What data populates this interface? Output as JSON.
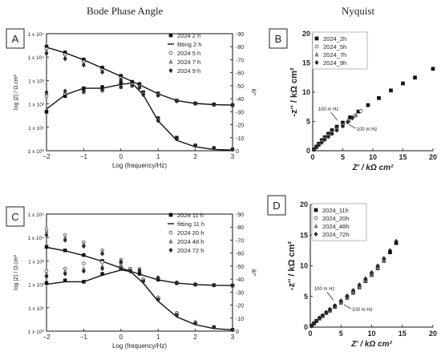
{
  "headings": {
    "left": "Bode Phase Angle",
    "right": "Nyquist"
  },
  "chart_data": [
    {
      "panel": "A",
      "type": "scatter",
      "xlabel": "Log (frequency/Hz)",
      "ylabel": "log |Z| / Ω.cm²",
      "y2label": "θ/°",
      "xlim": [
        -2,
        3
      ],
      "ylim": [
        0,
        5
      ],
      "y2lim": [
        0,
        -90
      ],
      "xticks": [
        "−2",
        "−1",
        "0",
        "1",
        "2",
        "3"
      ],
      "yticks": [
        "1 x 10⁰",
        "1 x 10¹",
        "1 x 10²",
        "1 x 10³",
        "1 x 10⁴",
        "1 x 10⁵"
      ],
      "y2ticks": [
        "0",
        "-10",
        "-20",
        "-30",
        "-40",
        "-50",
        "-60",
        "-70",
        "-80",
        "-90"
      ],
      "legend": [
        "2024 2 h",
        "fitting 2 h",
        "2024 5 h",
        "2024 7 h",
        "2024 9 h"
      ],
      "series": [
        {
          "name": "2024 2 h",
          "marker": "square",
          "axis": "y",
          "x": [
            -2,
            -1.5,
            -1,
            -0.5,
            0,
            0.5,
            1,
            1.5,
            2,
            2.5,
            3
          ],
          "y": [
            4.45,
            4.2,
            3.9,
            3.55,
            3.2,
            2.85,
            2.45,
            2.15,
            2.02,
            1.98,
            1.95
          ]
        },
        {
          "name": "2024 2 h",
          "marker": "square",
          "axis": "y2",
          "x": [
            -2,
            -1.5,
            -1,
            -0.5,
            0,
            0.3,
            0.6,
            1,
            1.5,
            2,
            2.5,
            3
          ],
          "y": [
            -30,
            -42,
            -48,
            -49,
            -52,
            -53,
            -45,
            -25,
            -10,
            -4,
            -2,
            -1
          ]
        },
        {
          "name": "fitting 2 h",
          "marker": "line",
          "axis": "y",
          "x": [
            -2,
            -1.5,
            -1,
            -0.5,
            0,
            0.5,
            1,
            1.5,
            2,
            2.5,
            3
          ],
          "y": [
            4.42,
            4.18,
            3.88,
            3.53,
            3.18,
            2.82,
            2.43,
            2.14,
            2.02,
            1.97,
            1.95
          ]
        },
        {
          "name": "fitting 2 h",
          "marker": "line",
          "axis": "y2",
          "x": [
            -2,
            -1.5,
            -1,
            -0.5,
            0,
            0.3,
            0.6,
            1,
            1.5,
            2,
            2.5,
            3
          ],
          "y": [
            -32,
            -43,
            -48,
            -48,
            -51,
            -52,
            -43,
            -23,
            -8,
            -3,
            -1,
            -0.5
          ]
        },
        {
          "name": "2024 5 h",
          "marker": "circle",
          "axis": "y",
          "x": [
            -2,
            -1.5,
            -1,
            -0.5,
            0,
            0.5,
            1,
            1.5,
            2,
            2.5,
            3
          ],
          "y": [
            4.35,
            4.1,
            3.8,
            3.45,
            3.1,
            2.75,
            2.4,
            2.15,
            2.02,
            1.97,
            1.95
          ]
        },
        {
          "name": "2024 5 h",
          "marker": "circle",
          "axis": "y2",
          "x": [
            -2,
            -1.5,
            -1,
            -0.5,
            0,
            0.3,
            0.6,
            1,
            1.5,
            2,
            2.5,
            3
          ],
          "y": [
            -42,
            -44,
            -45,
            -46,
            -49,
            -51,
            -44,
            -24,
            -9,
            -4,
            -2,
            -1
          ]
        },
        {
          "name": "2024 7 h",
          "marker": "triangle",
          "axis": "y",
          "x": [
            -2,
            -1.5,
            -1,
            -0.5,
            0,
            0.5,
            1,
            1.5,
            2,
            2.5,
            3
          ],
          "y": [
            4.25,
            4.0,
            3.72,
            3.4,
            3.05,
            2.72,
            2.38,
            2.13,
            2.02,
            1.97,
            1.95
          ]
        },
        {
          "name": "2024 7 h",
          "marker": "triangle",
          "axis": "y2",
          "x": [
            -2,
            -1.5,
            -1,
            -0.5,
            0,
            0.3,
            0.6,
            1,
            1.5,
            2,
            2.5,
            3
          ],
          "y": [
            -44,
            -45,
            -45,
            -47,
            -49,
            -50,
            -44,
            -24,
            -9,
            -4,
            -2,
            -1
          ]
        },
        {
          "name": "2024 9 h",
          "marker": "diamond",
          "axis": "y",
          "x": [
            -2,
            -1.5,
            -1,
            -0.5,
            0,
            0.5,
            1,
            1.5,
            2,
            2.5,
            3
          ],
          "y": [
            4.15,
            3.92,
            3.65,
            3.35,
            3.02,
            2.7,
            2.36,
            2.12,
            2.02,
            1.97,
            1.95
          ]
        },
        {
          "name": "2024 9 h",
          "marker": "diamond",
          "axis": "y2",
          "x": [
            -2,
            -1.5,
            -1,
            -0.5,
            0,
            0.3,
            0.6,
            1,
            1.5,
            2,
            2.5,
            3
          ],
          "y": [
            -45,
            -46,
            -46,
            -47,
            -49,
            -50,
            -43,
            -23,
            -9,
            -4,
            -2,
            -1
          ]
        }
      ]
    },
    {
      "panel": "B",
      "type": "scatter",
      "xlabel": "Z' / kΩ cm²",
      "ylabel": "-z'' / kΩ cm²",
      "xlim": [
        0,
        20
      ],
      "ylim": [
        0,
        20
      ],
      "xticks": [
        "0",
        "5",
        "10",
        "15",
        "20"
      ],
      "yticks": [
        "0",
        "5",
        "10",
        "15",
        "20"
      ],
      "legend": [
        "2024_2h",
        "2024_5h",
        "2024_7h",
        "2024_9h"
      ],
      "annotations": [
        "100 m Hz",
        "100 m Hz"
      ],
      "series": [
        {
          "name": "2024_2h",
          "marker": "square",
          "x": [
            0.2,
            0.6,
            1.0,
            1.5,
            2.0,
            2.6,
            3.2,
            4.0,
            5.0,
            6.2,
            7.6,
            9.2,
            11.0,
            13.0,
            15.0,
            17.0,
            20.0
          ],
          "y": [
            0.2,
            0.7,
            1.2,
            1.8,
            2.3,
            2.9,
            3.5,
            4.1,
            4.8,
            5.7,
            6.7,
            7.8,
            9.0,
            10.3,
            11.5,
            12.5,
            14.0
          ]
        },
        {
          "name": "2024_5h",
          "marker": "circle",
          "x": [
            0.2,
            0.6,
            1.0,
            1.5,
            2.0,
            2.6,
            3.2,
            4.0,
            5.0,
            6.0,
            7.0,
            8.0
          ],
          "y": [
            0.2,
            0.6,
            1.1,
            1.6,
            2.1,
            2.6,
            3.1,
            3.7,
            4.4,
            5.2,
            6.0,
            6.8
          ]
        },
        {
          "name": "2024_7h",
          "marker": "triangle",
          "x": [
            0.2,
            0.6,
            1.0,
            1.5,
            2.0,
            2.6,
            3.2,
            4.0,
            5.0,
            6.0,
            7.2
          ],
          "y": [
            0.2,
            0.6,
            1.0,
            1.5,
            2.0,
            2.5,
            3.0,
            3.6,
            4.3,
            5.1,
            6.1
          ]
        },
        {
          "name": "2024_9h",
          "marker": "diamond",
          "x": [
            0.2,
            0.6,
            1.0,
            1.5,
            2.0,
            2.6,
            3.2,
            4.0,
            5.0,
            5.8,
            6.6
          ],
          "y": [
            0.2,
            0.6,
            1.0,
            1.4,
            1.9,
            2.4,
            2.9,
            3.5,
            4.2,
            4.9,
            5.6
          ]
        }
      ]
    },
    {
      "panel": "C",
      "type": "scatter",
      "xlabel": "Log (frequency/Hz)",
      "ylabel": "log |Z| / Ω.cm²",
      "y2label": "θ/°",
      "xlim": [
        -2,
        3
      ],
      "ylim": [
        0,
        5
      ],
      "y2lim": [
        0,
        -90
      ],
      "xticks": [
        "−2",
        "−1",
        "0",
        "1",
        "2",
        "3"
      ],
      "yticks": [
        "1 x 10⁰",
        "1 x 10¹",
        "1 x 10²",
        "1 x 10³",
        "1 x 10⁴",
        "1 x 10⁵"
      ],
      "y2ticks": [
        "0",
        "-10",
        "-20",
        "-30",
        "-40",
        "-50",
        "-60",
        "-70",
        "-80",
        "-90"
      ],
      "legend": [
        "2024 11 h",
        "fitting 11 h",
        "2024 20 h",
        "2024 48 h",
        "2024 72 h"
      ],
      "series": [
        {
          "name": "2024 11 h",
          "marker": "square",
          "axis": "y",
          "x": [
            -2,
            -1.5,
            -1,
            -0.5,
            0,
            0.5,
            1,
            1.5,
            2,
            2.5,
            3
          ],
          "y": [
            3.6,
            3.45,
            3.25,
            3.0,
            2.72,
            2.45,
            2.2,
            2.05,
            1.99,
            1.96,
            1.95
          ]
        },
        {
          "name": "2024 11 h",
          "marker": "square",
          "axis": "y2",
          "x": [
            -2,
            -1.5,
            -1,
            -0.5,
            0,
            0.25,
            0.6,
            1,
            1.5,
            2,
            2.5,
            3
          ],
          "y": [
            -37,
            -39,
            -38,
            -44,
            -48,
            -47,
            -39,
            -25,
            -13,
            -6,
            -3,
            -1
          ]
        },
        {
          "name": "fitting 11 h",
          "marker": "line",
          "axis": "y",
          "x": [
            -2,
            -1.5,
            -1,
            -0.5,
            0,
            0.5,
            1,
            1.5,
            2,
            2.5,
            3
          ],
          "y": [
            3.58,
            3.43,
            3.23,
            2.98,
            2.7,
            2.43,
            2.19,
            2.05,
            1.99,
            1.96,
            1.95
          ]
        },
        {
          "name": "fitting 11 h",
          "marker": "line",
          "axis": "y2",
          "x": [
            -2,
            -1.5,
            -1,
            -0.5,
            0,
            0.25,
            0.6,
            1,
            1.5,
            2,
            2.5,
            3
          ],
          "y": [
            -36,
            -38,
            -38,
            -43,
            -47,
            -46,
            -37,
            -23,
            -11,
            -5,
            -2,
            -1
          ]
        },
        {
          "name": "2024 20 h",
          "marker": "circle",
          "axis": "y",
          "x": [
            -2,
            -1.5,
            -1,
            -0.5,
            0,
            0.5,
            1,
            1.5,
            2,
            2.5,
            3
          ],
          "y": [
            4.35,
            4.1,
            3.8,
            3.45,
            3.05,
            2.65,
            2.3,
            2.08,
            1.99,
            1.96,
            1.95
          ]
        },
        {
          "name": "2024 20 h",
          "marker": "circle",
          "axis": "y2",
          "x": [
            -2,
            -1.5,
            -1,
            -0.5,
            0,
            0.25,
            0.6,
            1,
            1.5,
            2,
            2.5,
            3
          ],
          "y": [
            -46,
            -48,
            -52,
            -53,
            -52,
            -48,
            -40,
            -26,
            -14,
            -7,
            -3,
            -1
          ]
        },
        {
          "name": "2024 48 h",
          "marker": "triangle",
          "axis": "y",
          "x": [
            -2,
            -1.5,
            -1,
            -0.5,
            0,
            0.5,
            1,
            1.5,
            2,
            2.5,
            3
          ],
          "y": [
            4.25,
            4.0,
            3.72,
            3.38,
            3.0,
            2.62,
            2.28,
            2.07,
            1.99,
            1.96,
            1.95
          ]
        },
        {
          "name": "2024 48 h",
          "marker": "triangle",
          "axis": "y2",
          "x": [
            -2,
            -1.5,
            -1,
            -0.5,
            0,
            0.25,
            0.6,
            1,
            1.5,
            2,
            2.5,
            3
          ],
          "y": [
            -44,
            -46,
            -48,
            -50,
            -50,
            -47,
            -39,
            -25,
            -13,
            -6,
            -3,
            -1
          ]
        },
        {
          "name": "2024 72 h",
          "marker": "diamond",
          "axis": "y",
          "x": [
            -2,
            -1.5,
            -1,
            -0.5,
            0,
            0.5,
            1,
            1.5,
            2,
            2.5,
            3
          ],
          "y": [
            4.1,
            3.88,
            3.62,
            3.3,
            2.95,
            2.58,
            2.26,
            2.06,
            1.99,
            1.96,
            1.95
          ]
        },
        {
          "name": "2024 72 h",
          "marker": "diamond",
          "axis": "y2",
          "x": [
            -2,
            -1.5,
            -1,
            -0.5,
            0,
            0.25,
            0.6,
            1,
            1.5,
            2,
            2.5,
            3
          ],
          "y": [
            -42,
            -44,
            -46,
            -48,
            -48,
            -46,
            -38,
            -24,
            -12,
            -6,
            -3,
            -1
          ]
        }
      ]
    },
    {
      "panel": "D",
      "type": "scatter",
      "xlabel": "Z' / kΩ cm²",
      "ylabel": "-z'' / kΩ cm²",
      "xlim": [
        0,
        20
      ],
      "ylim": [
        0,
        20
      ],
      "xticks": [
        "0",
        "5",
        "10",
        "15",
        "20"
      ],
      "yticks": [
        "0",
        "5",
        "10",
        "15",
        "20"
      ],
      "legend": [
        "2024_11h",
        "2024_20h",
        "2024_48h",
        "2024_72h"
      ],
      "annotations": [
        "100 m Hz",
        "100 m Hz"
      ],
      "series": [
        {
          "name": "2024_11h",
          "marker": "square",
          "x": [
            0.2,
            0.6,
            1.0,
            1.5,
            2.0,
            2.6,
            3.2,
            4.0,
            5.0,
            6.0,
            7.0,
            8.0,
            9.0,
            10.0,
            11.0,
            12.0,
            13.0,
            14.0
          ],
          "y": [
            0.2,
            0.6,
            1.0,
            1.4,
            1.8,
            2.3,
            2.7,
            3.3,
            4.0,
            4.8,
            5.6,
            6.5,
            7.5,
            8.5,
            9.6,
            10.8,
            12.2,
            13.7
          ]
        },
        {
          "name": "2024_20h",
          "marker": "circle",
          "x": [
            0.2,
            0.6,
            1.0,
            1.5,
            2.0,
            2.6,
            3.2,
            4.0,
            5.0,
            6.0,
            7.0,
            8.0,
            9.0,
            10.0,
            11.0,
            12.0
          ],
          "y": [
            0.2,
            0.6,
            1.0,
            1.5,
            1.9,
            2.4,
            2.9,
            3.5,
            4.2,
            5.0,
            5.9,
            6.8,
            7.8,
            8.8,
            9.9,
            11.0
          ]
        },
        {
          "name": "2024_48h",
          "marker": "triangle",
          "x": [
            0.2,
            0.6,
            1.0,
            1.5,
            2.0,
            2.6,
            3.2,
            4.0,
            5.0,
            6.0,
            7.0,
            8.0,
            9.0,
            10.0,
            11.0,
            12.0
          ],
          "y": [
            0.2,
            0.6,
            1.0,
            1.4,
            1.8,
            2.3,
            2.8,
            3.4,
            4.1,
            4.9,
            5.7,
            6.6,
            7.6,
            8.6,
            9.7,
            10.8
          ]
        },
        {
          "name": "2024_72h",
          "marker": "diamond",
          "x": [
            0.2,
            0.6,
            1.0,
            1.5,
            2.0,
            2.6,
            3.2,
            4.0,
            5.0,
            6.0,
            7.0,
            8.0,
            9.0,
            10.0,
            11.0,
            12.0,
            13.0,
            14.0
          ],
          "y": [
            0.2,
            0.6,
            1.0,
            1.5,
            1.9,
            2.4,
            2.9,
            3.5,
            4.3,
            5.1,
            6.0,
            6.9,
            7.9,
            8.9,
            10.0,
            11.2,
            12.5,
            14.0
          ]
        }
      ]
    }
  ]
}
